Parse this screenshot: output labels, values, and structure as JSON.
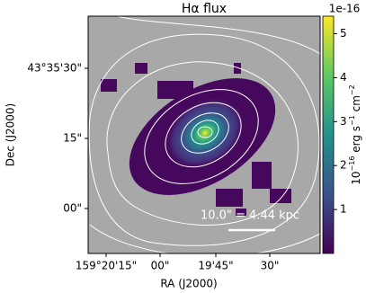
{
  "chart_data": {
    "type": "image",
    "title": "Hα flux",
    "xlabel": "RA (J2000)",
    "ylabel": "Dec (J2000)",
    "xtick_labels": [
      "159°20'15\"",
      "00\"",
      "19'45\"",
      "30\""
    ],
    "ytick_labels": [
      "43°35'30\"",
      "15\"",
      "00\""
    ],
    "colorbar": {
      "lim": [
        0,
        5.4
      ],
      "ticks": [
        1,
        2,
        3,
        4,
        5
      ],
      "offset": "1e-16",
      "label_parts": [
        "10",
        "−16",
        " erg s",
        "−1",
        " cm",
        "−2"
      ],
      "colormap": "viridis"
    },
    "annotation": "10.0\" = 4.44 kpc",
    "background": "#a8a8a8"
  }
}
